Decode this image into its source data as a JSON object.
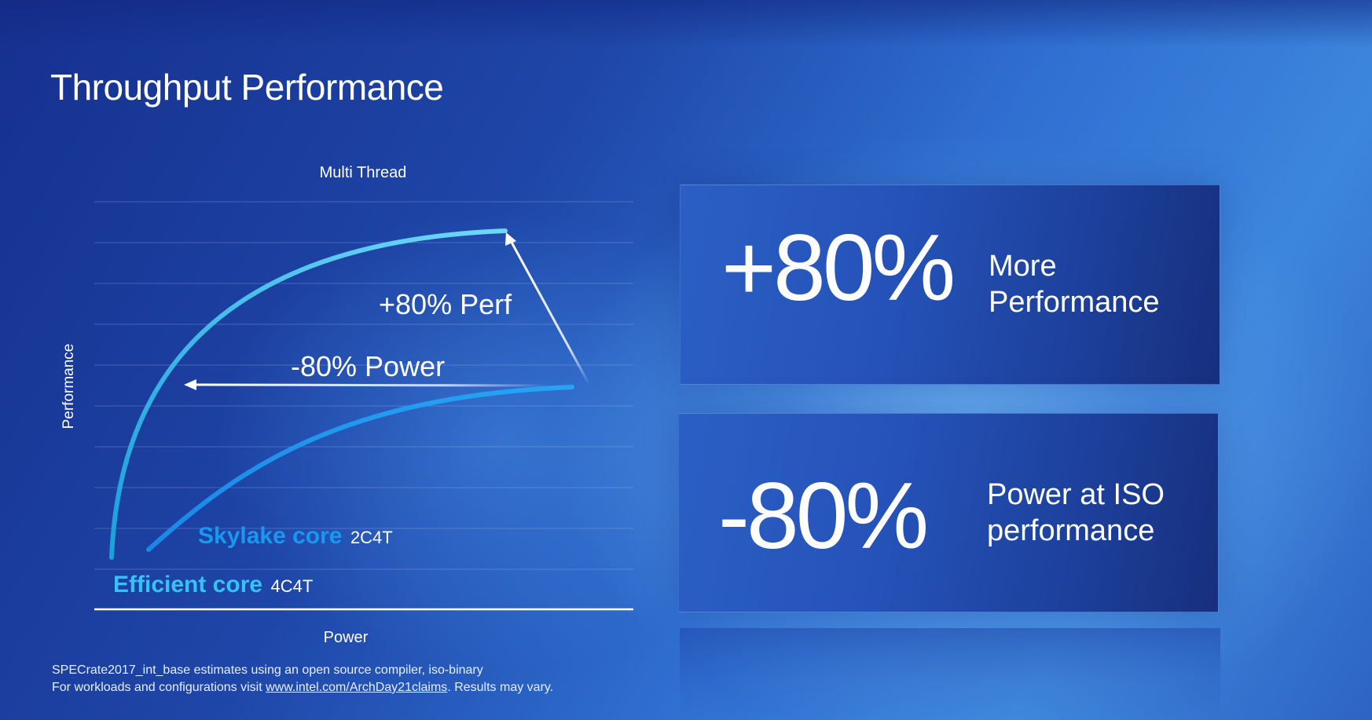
{
  "page": {
    "title": "Throughput Performance"
  },
  "chart_data": {
    "type": "line",
    "title": "Multi Thread",
    "xlabel": "Power",
    "ylabel": "Performance",
    "grid": true,
    "series": [
      {
        "name": "Efficient core 4C4T",
        "name_main": "Efficient core",
        "name_sub": "4C4T",
        "color": "#35b8f0"
      },
      {
        "name": "Skylake core 2C4T",
        "name_main": "Skylake core",
        "name_sub": "2C4T",
        "color": "#1a8ff0"
      }
    ],
    "annotations": [
      {
        "text": "+80% Perf"
      },
      {
        "text": "-80% Power"
      }
    ]
  },
  "stats": [
    {
      "value": "+80%",
      "label": "More\nPerformance"
    },
    {
      "value": "-80%",
      "label": "Power at ISO\nperformance"
    }
  ],
  "footnote": {
    "line1": "SPECrate2017_int_base estimates using an open source compiler, iso-binary",
    "line2_prefix": "For workloads and configurations visit ",
    "link": "www.intel.com/ArchDay21claims",
    "line2_suffix": ". Results may vary."
  },
  "colors": {
    "accent_light": "#5fd0f5",
    "accent_dark": "#1a8ff0",
    "background": "#2a5cc4"
  }
}
